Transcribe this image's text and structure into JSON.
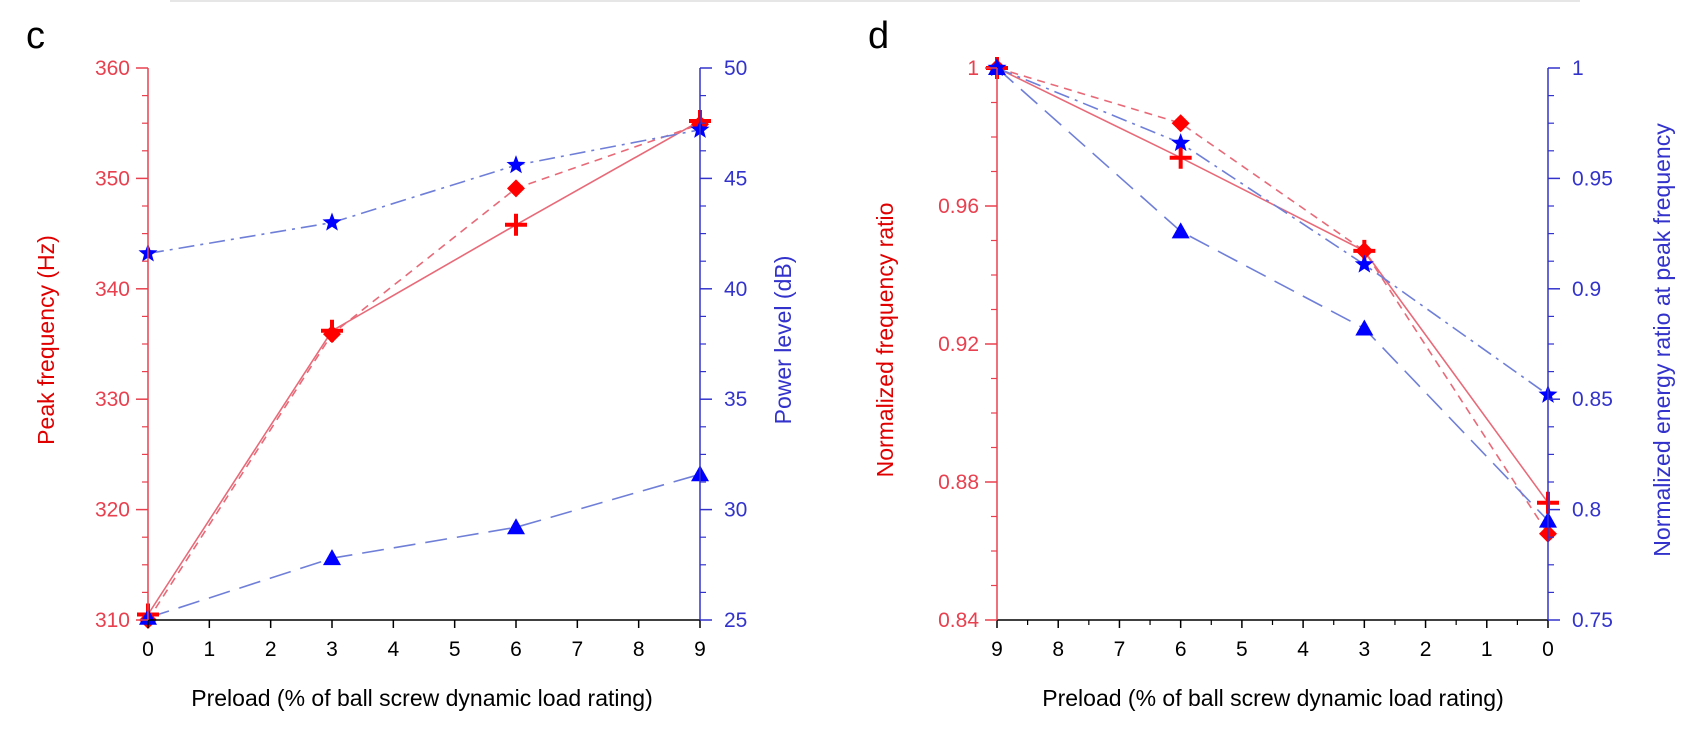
{
  "colors": {
    "left_axis": "#e8404f",
    "left_title": "#e00000",
    "right_axis": "#3333cc",
    "series_red": "#ff0000",
    "series_blue": "#0000ff",
    "line_red": "#e86a78",
    "line_blue": "#6f7fd8",
    "bottom_axis": "#000000",
    "top_rule": "#e6e6e6"
  },
  "chart_data": [
    {
      "panel_label": "c",
      "type": "line",
      "xlabel": "Preload (% of ball screw dynamic load rating)",
      "ylabel": "Peak frequency (Hz)",
      "y2label": "Power level (dB)",
      "xlim": [
        0,
        9
      ],
      "x_ticks": [
        0,
        1,
        2,
        3,
        4,
        5,
        6,
        7,
        8,
        9
      ],
      "ylim": [
        310,
        360
      ],
      "y_ticks": [
        310,
        320,
        330,
        340,
        350,
        360
      ],
      "y2lim": [
        25,
        50
      ],
      "y2_ticks": [
        25,
        30,
        35,
        40,
        45,
        50
      ],
      "series": [
        {
          "axis": "left",
          "marker": "plus",
          "color": "series_red",
          "line": "solid",
          "x": [
            0,
            3,
            6,
            9
          ],
          "y": [
            310.5,
            336.2,
            345.8,
            355.2
          ]
        },
        {
          "axis": "left",
          "marker": "diamond",
          "color": "series_red",
          "line": "dashed",
          "x": [
            0,
            3,
            6,
            9
          ],
          "y": [
            310.0,
            335.9,
            349.1,
            354.9
          ]
        },
        {
          "axis": "right",
          "marker": "star",
          "color": "series_blue",
          "line": "dashdot",
          "x": [
            0,
            3,
            6,
            9
          ],
          "y": [
            41.6,
            43.0,
            45.6,
            47.2
          ]
        },
        {
          "axis": "right",
          "marker": "triangle",
          "color": "series_blue",
          "line": "longdash",
          "x": [
            0,
            3,
            6,
            9
          ],
          "y": [
            25.1,
            27.8,
            29.2,
            31.6
          ]
        }
      ]
    },
    {
      "panel_label": "d",
      "type": "line",
      "xlabel": "Preload (% of ball screw dynamic load rating)",
      "ylabel": "Normalized frequency ratio",
      "y2label": "Normalized energy  ratio at peak frequency",
      "xlim": [
        9,
        0
      ],
      "x_ticks": [
        9,
        8,
        7,
        6,
        5,
        4,
        3,
        2,
        1,
        0
      ],
      "ylim": [
        0.84,
        1.0
      ],
      "y_ticks": [
        0.84,
        0.88,
        0.92,
        0.96,
        1
      ],
      "y_tick_labels": [
        "0.84",
        "0.88",
        "0.92",
        "0.96",
        "1"
      ],
      "y2lim": [
        0.75,
        1.0
      ],
      "y2_ticks": [
        0.75,
        0.8,
        0.85,
        0.9,
        0.95,
        1
      ],
      "y2_tick_labels": [
        "0.75",
        "0.8",
        "0.85",
        "0.9",
        "0.95",
        "1"
      ],
      "series": [
        {
          "axis": "left",
          "marker": "plus",
          "color": "series_red",
          "line": "solid",
          "x": [
            9,
            6,
            3,
            0
          ],
          "y": [
            1.0,
            0.974,
            0.947,
            0.874
          ]
        },
        {
          "axis": "left",
          "marker": "diamond",
          "color": "series_red",
          "line": "dashed",
          "x": [
            9,
            6,
            3,
            0
          ],
          "y": [
            1.0,
            0.984,
            0.947,
            0.865
          ]
        },
        {
          "axis": "right",
          "marker": "star",
          "color": "series_blue",
          "line": "dashdot",
          "x": [
            9,
            6,
            3,
            0
          ],
          "y": [
            1.0,
            0.966,
            0.911,
            0.852
          ]
        },
        {
          "axis": "right",
          "marker": "triangle",
          "color": "series_blue",
          "line": "longdash",
          "x": [
            9,
            6,
            3,
            0
          ],
          "y": [
            1.0,
            0.926,
            0.882,
            0.795
          ]
        }
      ]
    }
  ]
}
